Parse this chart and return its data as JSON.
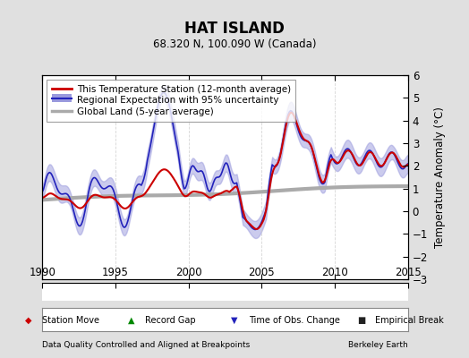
{
  "title": "HAT ISLAND",
  "subtitle": "68.320 N, 100.090 W (Canada)",
  "xlabel_left": "Data Quality Controlled and Aligned at Breakpoints",
  "xlabel_right": "Berkeley Earth",
  "ylabel": "Temperature Anomaly (°C)",
  "xlim": [
    1990,
    2015
  ],
  "ylim": [
    -3,
    6
  ],
  "yticks": [
    -3,
    -2,
    -1,
    0,
    1,
    2,
    3,
    4,
    5,
    6
  ],
  "xticks": [
    1990,
    1995,
    2000,
    2005,
    2010,
    2015
  ],
  "bg_color": "#e0e0e0",
  "plot_bg_color": "#ffffff",
  "grid_color": "#cccccc",
  "station_color": "#cc0000",
  "regional_color": "#2222bb",
  "regional_fill_color": "#9999dd",
  "global_color": "#aaaaaa",
  "legend_items": [
    "This Temperature Station (12-month average)",
    "Regional Expectation with 95% uncertainty",
    "Global Land (5-year average)"
  ]
}
